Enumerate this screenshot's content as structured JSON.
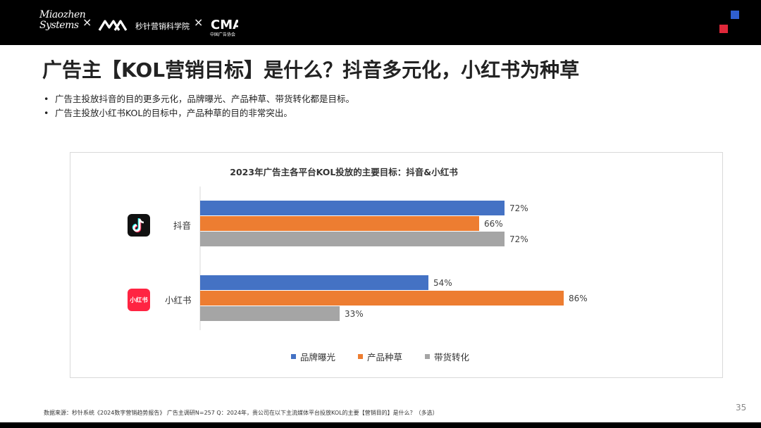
{
  "header": {
    "brand_line1": "Miaozhen",
    "brand_line2": "Systems",
    "separator": "×",
    "academy": "秒针营销科学院",
    "cma_logo": "CMA",
    "cma_sub": "中国广告协会"
  },
  "page": {
    "title": "广告主【KOL营销目标】是什么？抖音多元化，小红书为种草",
    "bullets": [
      "广告主投放抖音的目的更多元化，品牌曝光、产品种草、带货转化都是目标。",
      "广告主投放小红书KOL的目标中，产品种草的目的非常突出。"
    ],
    "bullet_symbol": "•",
    "footnote": "数据来源：秒针系统《2024数字营销趋势报告》 广告主调研N=257  Q：2024年，贵公司在以下主流媒体平台投放KOL的主要【营销目的】是什么？（多选）",
    "page_number": "35"
  },
  "colors": {
    "blue": "#4472c4",
    "orange": "#ed7d31",
    "gray": "#a5a5a5",
    "accent_blue": "#2f5fd0",
    "accent_red": "#e0283a",
    "xhs_red": "#ff2442"
  },
  "icons": {
    "douyin": "douyin-icon",
    "xiaohongshu": "xiaohongshu-icon"
  },
  "xhs_icon_text": "小红书",
  "chart_data": {
    "type": "bar",
    "orientation": "horizontal",
    "title": "2023年广告主各平台KOL投放的主要目标：抖音&小红书",
    "categories": [
      "抖音",
      "小红书"
    ],
    "series": [
      {
        "name": "品牌曝光",
        "values": [
          72,
          54
        ],
        "labels": [
          "72%",
          "54%"
        ]
      },
      {
        "name": "产品种草",
        "values": [
          66,
          86
        ],
        "labels": [
          "66%",
          "86%"
        ]
      },
      {
        "name": "带货转化",
        "values": [
          72,
          33
        ],
        "labels": [
          "72%",
          "33%"
        ]
      }
    ],
    "unit": "%",
    "xlim": [
      0,
      100
    ],
    "grid": false,
    "legend_position": "bottom"
  }
}
